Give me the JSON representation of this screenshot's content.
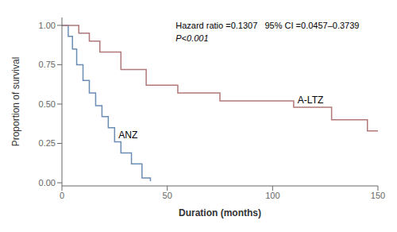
{
  "chart_data": {
    "type": "step",
    "title": "",
    "xlabel": "Duration (months)",
    "ylabel": "Proportion of survival",
    "xlim": [
      0,
      150
    ],
    "ylim": [
      -0.02,
      1.05
    ],
    "xticks": [
      0,
      50,
      100,
      150
    ],
    "yticks": [
      {
        "value": 0.0,
        "label": "0.00"
      },
      {
        "value": 0.25,
        "label": "0.25"
      },
      {
        "value": 0.5,
        "label": "0.50"
      },
      {
        "value": 0.75,
        "label": "0.75"
      },
      {
        "value": 1.0,
        "label": "1.00"
      }
    ],
    "grid": false,
    "annotations": [
      "Hazard ratio =0.1307   95% CI =0.0457–0.3739",
      "P<0.001"
    ],
    "series": [
      {
        "name": "ANZ",
        "color": "#6a8db5",
        "x": [
          0,
          3,
          5,
          7,
          10,
          13,
          16,
          19,
          22,
          25,
          28,
          33,
          38,
          42
        ],
        "values": [
          1.0,
          0.93,
          0.85,
          0.75,
          0.65,
          0.57,
          0.49,
          0.42,
          0.35,
          0.26,
          0.19,
          0.12,
          0.03,
          0.01
        ]
      },
      {
        "name": "A-LTZ",
        "color": "#b07878",
        "x": [
          0,
          8,
          13,
          18,
          28,
          40,
          55,
          75,
          110,
          128,
          145,
          150
        ],
        "values": [
          1.0,
          0.95,
          0.9,
          0.83,
          0.72,
          0.62,
          0.57,
          0.52,
          0.48,
          0.4,
          0.33,
          0.33
        ]
      }
    ]
  }
}
